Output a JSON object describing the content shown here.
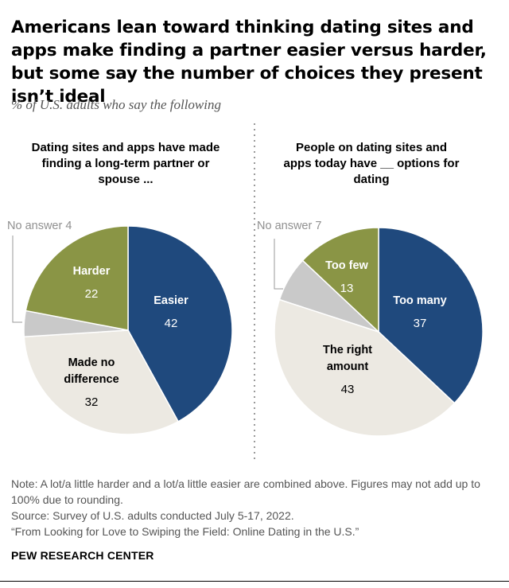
{
  "title": "Americans lean toward thinking dating sites and apps make finding a partner easier versus harder, but some say the number of choices they present isn’t ideal",
  "subtitle": "% of U.S. adults who say the following",
  "chart_data": [
    {
      "type": "pie",
      "title_lines": [
        "Dating sites and apps have made",
        "finding a long-term partner or",
        "spouse ..."
      ],
      "slices": [
        {
          "name_lines": [
            "Easier"
          ],
          "value": 42,
          "color": "#1f497d",
          "text_color": "#ffffff"
        },
        {
          "name_lines": [
            "Made no",
            "difference"
          ],
          "value": 32,
          "color": "#ece9e2",
          "text_color": "#000000"
        },
        {
          "name_lines": [
            "No answer"
          ],
          "value": 4,
          "color": "#c9c9c9",
          "text_color": "#909090"
        },
        {
          "name_lines": [
            "Harder"
          ],
          "value": 22,
          "color": "#8a9545",
          "text_color": "#ffffff"
        }
      ]
    },
    {
      "type": "pie",
      "title_lines": [
        "People on dating sites and",
        "apps today have __ options for",
        "dating"
      ],
      "slices": [
        {
          "name_lines": [
            "Too many"
          ],
          "value": 37,
          "color": "#1f497d",
          "text_color": "#ffffff"
        },
        {
          "name_lines": [
            "The right",
            "amount"
          ],
          "value": 43,
          "color": "#ece9e2",
          "text_color": "#000000"
        },
        {
          "name_lines": [
            "No answer"
          ],
          "value": 7,
          "color": "#c9c9c9",
          "text_color": "#909090"
        },
        {
          "name_lines": [
            "Too few"
          ],
          "value": 13,
          "color": "#8a9545",
          "text_color": "#ffffff"
        }
      ]
    }
  ],
  "footer": {
    "note": "Note: A lot/a little harder and a lot/a little easier are combined above. Figures may not add up to 100% due to rounding.",
    "source": "Source: Survey of U.S. adults conducted July 5-17, 2022.",
    "report": "“From Looking for Love to Swiping the Field: Online Dating in the U.S.”"
  },
  "brand": "PEW RESEARCH CENTER"
}
